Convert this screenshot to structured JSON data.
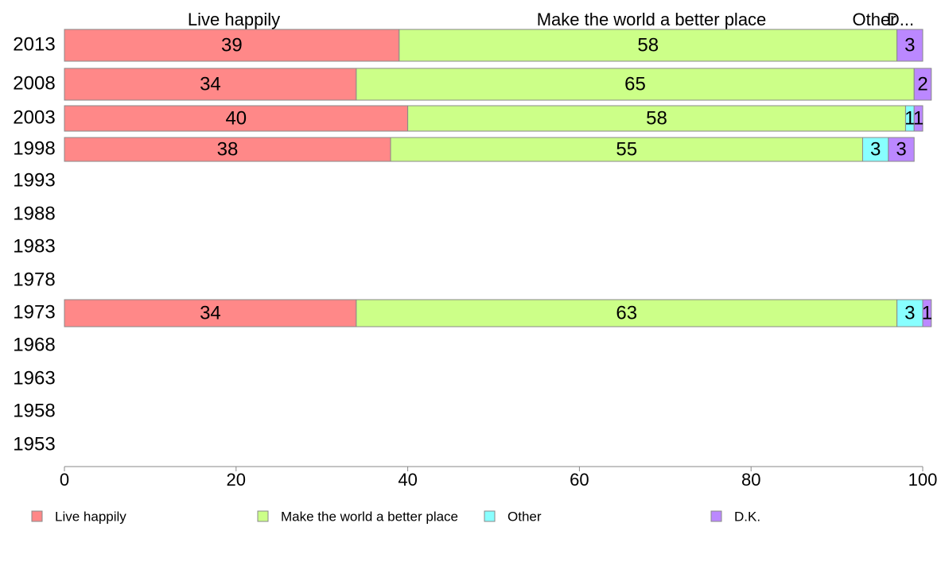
{
  "chart_data": {
    "type": "bar",
    "orientation": "horizontal",
    "stacked": true,
    "categories": [
      "2013",
      "2008",
      "2003",
      "1998",
      "1993",
      "1988",
      "1983",
      "1978",
      "1973",
      "1968",
      "1963",
      "1958",
      "1953"
    ],
    "series": [
      {
        "name": "Live happily",
        "color": "#ff8888",
        "values": [
          39,
          34,
          40,
          38,
          null,
          null,
          null,
          null,
          34,
          null,
          null,
          null,
          null
        ]
      },
      {
        "name": "Make the world a better place",
        "color": "#ccff88",
        "values": [
          58,
          65,
          58,
          55,
          null,
          null,
          null,
          null,
          63,
          null,
          null,
          null,
          null
        ]
      },
      {
        "name": "Other",
        "color": "#88ffff",
        "values": [
          0,
          0,
          1,
          3,
          null,
          null,
          null,
          null,
          3,
          null,
          null,
          null,
          null
        ]
      },
      {
        "name": "D.K.",
        "color": "#bb88ff",
        "values": [
          3,
          2,
          1,
          3,
          null,
          null,
          null,
          null,
          1,
          null,
          null,
          null,
          null
        ]
      }
    ],
    "top_labels": [
      "Live happily",
      "Make the world a better place",
      "Other",
      "D..."
    ],
    "xlim": [
      0,
      100
    ],
    "xticks": [
      "0",
      "20",
      "40",
      "60",
      "80",
      "100"
    ],
    "grid": false,
    "legend_position": "bottom"
  }
}
